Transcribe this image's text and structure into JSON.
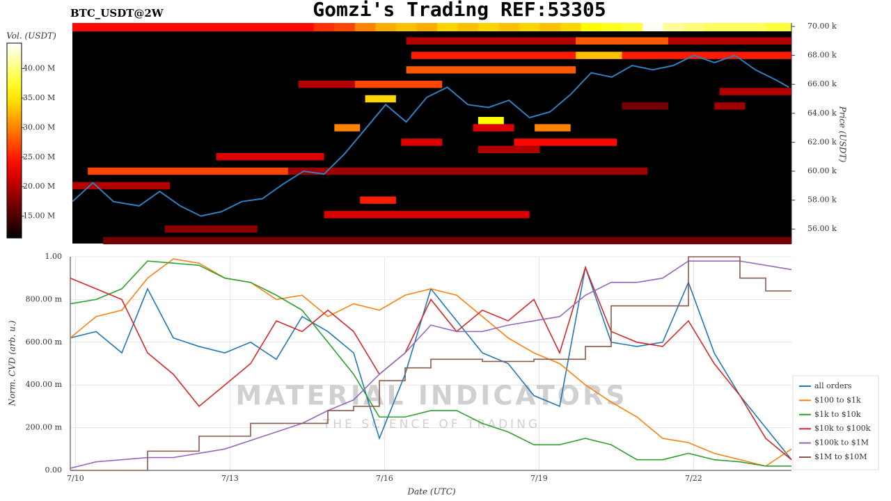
{
  "chart_data": [
    {
      "type": "heatmap",
      "title": "Gomzi's Trading REF:53305",
      "subtitle": "BTC_USDT@2W",
      "colorbar_label": "Vol. (USDT)",
      "ylabel": "Price (USDT)",
      "xlim": [
        9.9,
        23.9
      ],
      "ylim": [
        55000,
        70240
      ],
      "yticks": [
        {
          "value": 56000,
          "label": "56.00 k"
        },
        {
          "value": 58000,
          "label": "58.00 k"
        },
        {
          "value": 60000,
          "label": "60.00 k"
        },
        {
          "value": 62000,
          "label": "62.00 k"
        },
        {
          "value": 64000,
          "label": "64.00 k"
        },
        {
          "value": 66000,
          "label": "66.00 k"
        },
        {
          "value": 68000,
          "label": "68.00 k"
        },
        {
          "value": 70000,
          "label": "70.00 k"
        }
      ],
      "vlim": [
        11300000,
        44300000
      ],
      "vticks": [
        {
          "value": 15000000,
          "label": "15.00 M"
        },
        {
          "value": 20000000,
          "label": "20.00 M"
        },
        {
          "value": 25000000,
          "label": "25.00 M"
        },
        {
          "value": 30000000,
          "label": "30.00 M"
        },
        {
          "value": 35000000,
          "label": "35.00 M"
        },
        {
          "value": 40000000,
          "label": "40.00 M"
        }
      ],
      "colormap": "hot",
      "cells": [
        {
          "x": [
            10.5,
            23.9
          ],
          "price": 55200,
          "volume": 17000000
        },
        {
          "x": [
            11.7,
            13.5
          ],
          "price": 56000,
          "volume": 18000000
        },
        {
          "x": [
            14.8,
            18.8
          ],
          "price": 57000,
          "volume": 22000000
        },
        {
          "x": [
            15.5,
            16.2
          ],
          "price": 58000,
          "volume": 25000000
        },
        {
          "x": [
            9.9,
            11.8
          ],
          "price": 59000,
          "volume": 20000000
        },
        {
          "x": [
            10.2,
            14.1
          ],
          "price": 60000,
          "volume": 27000000
        },
        {
          "x": [
            14.1,
            21.1
          ],
          "price": 60000,
          "volume": 19000000
        },
        {
          "x": [
            12.7,
            14.8
          ],
          "price": 61000,
          "volume": 22000000
        },
        {
          "x": [
            17.8,
            19.0
          ],
          "price": 61500,
          "volume": 20000000
        },
        {
          "x": [
            16.3,
            17.1
          ],
          "price": 62000,
          "volume": 22000000
        },
        {
          "x": [
            18.5,
            20.5
          ],
          "price": 62000,
          "volume": 24000000
        },
        {
          "x": [
            15.0,
            15.5
          ],
          "price": 63000,
          "volume": 30000000
        },
        {
          "x": [
            17.7,
            18.5
          ],
          "price": 63000,
          "volume": 22000000
        },
        {
          "x": [
            18.9,
            19.6
          ],
          "price": 63000,
          "volume": 30000000
        },
        {
          "x": [
            17.8,
            18.3
          ],
          "price": 63500,
          "volume": 36000000
        },
        {
          "x": [
            20.6,
            21.5
          ],
          "price": 64500,
          "volume": 17000000
        },
        {
          "x": [
            22.4,
            23.0
          ],
          "price": 64500,
          "volume": 19000000
        },
        {
          "x": [
            15.6,
            16.2
          ],
          "price": 65000,
          "volume": 34000000
        },
        {
          "x": [
            22.5,
            23.9
          ],
          "price": 65500,
          "volume": 20000000
        },
        {
          "x": [
            14.3,
            15.4
          ],
          "price": 66000,
          "volume": 20000000
        },
        {
          "x": [
            15.4,
            17.1
          ],
          "price": 66000,
          "volume": 27000000
        },
        {
          "x": [
            16.4,
            19.7
          ],
          "price": 67000,
          "volume": 28000000
        },
        {
          "x": [
            16.5,
            23.9
          ],
          "price": 68000,
          "volume": 25000000
        },
        {
          "x": [
            19.7,
            20.6
          ],
          "price": 68000,
          "volume": 33000000
        },
        {
          "x": [
            16.4,
            23.9
          ],
          "price": 69000,
          "volume": 20000000
        },
        {
          "x": [
            19.7,
            21.5
          ],
          "price": 69000,
          "volume": 28000000
        }
      ],
      "x": [
        9.9,
        10.3,
        10.7,
        11.2,
        11.6,
        12.0,
        12.4,
        12.8,
        13.2,
        13.6,
        14.0,
        14.4,
        14.8,
        15.2,
        15.6,
        16.0,
        16.4,
        16.8,
        17.2,
        17.6,
        18.0,
        18.4,
        18.8,
        19.2,
        19.6,
        20.0,
        20.4,
        20.8,
        21.2,
        21.6,
        22.0,
        22.4,
        22.8,
        23.2,
        23.6,
        23.85
      ],
      "price": {
        "color": "#2f7fc1",
        "values": [
          57900,
          59200,
          57900,
          57600,
          58600,
          57600,
          56900,
          57200,
          57900,
          58100,
          59100,
          60000,
          59800,
          61200,
          62900,
          64600,
          63400,
          65100,
          65800,
          64600,
          64400,
          64900,
          63700,
          64100,
          65300,
          66800,
          66500,
          67300,
          67000,
          67300,
          68000,
          67500,
          68000,
          67000,
          66300,
          65800
        ]
      },
      "strip": [
        24000000,
        24000000,
        24000000,
        24000000,
        24000000,
        24000000,
        24000000,
        24000000,
        24000000,
        24000000,
        24000000,
        24000000,
        26000000,
        27000000,
        30000000,
        32000000,
        33000000,
        32000000,
        34000000,
        33000000,
        34000000,
        33000000,
        34000000,
        33000000,
        34000000,
        36000000,
        37000000,
        38000000,
        44000000,
        41000000,
        40000000,
        39000000,
        39000000,
        39000000,
        38000000,
        38000000
      ]
    },
    {
      "type": "line",
      "ylabel": "Norm. CVD (arb. u.)",
      "xlabel": "Date (UTC)",
      "watermark": "MATERIAL INDICATORS",
      "watermark_sub": "THE SCIENCE OF TRADING",
      "xlim": [
        9.9,
        23.9
      ],
      "xticks": [
        {
          "value": 10,
          "label": "7/10"
        },
        {
          "value": 13,
          "label": "7/13"
        },
        {
          "value": 16,
          "label": "7/16"
        },
        {
          "value": 19,
          "label": "7/19"
        },
        {
          "value": 22,
          "label": "7/22"
        }
      ],
      "ylim": [
        0,
        1
      ],
      "yticks": [
        {
          "value": 0,
          "label": "0.00"
        },
        {
          "value": 0.2,
          "label": "200.00 m"
        },
        {
          "value": 0.4,
          "label": "400.00 m"
        },
        {
          "value": 0.6,
          "label": "600.00 m"
        },
        {
          "value": 0.8,
          "label": "800.00 m"
        },
        {
          "value": 1,
          "label": "1.00"
        }
      ],
      "grid": true,
      "legend": "right",
      "x": [
        9.9,
        10.4,
        10.9,
        11.4,
        11.9,
        12.4,
        12.9,
        13.4,
        13.9,
        14.4,
        14.9,
        15.4,
        15.9,
        16.4,
        16.9,
        17.4,
        17.9,
        18.4,
        18.9,
        19.4,
        19.9,
        20.4,
        20.9,
        21.4,
        21.9,
        22.4,
        22.9,
        23.4,
        23.9
      ],
      "series": [
        {
          "name": "all orders",
          "color": "#1f77b4",
          "values": [
            0.62,
            0.65,
            0.55,
            0.85,
            0.62,
            0.58,
            0.55,
            0.6,
            0.52,
            0.72,
            0.65,
            0.55,
            0.15,
            0.45,
            0.85,
            0.7,
            0.55,
            0.5,
            0.35,
            0.3,
            0.95,
            0.6,
            0.58,
            0.6,
            0.88,
            0.55,
            0.35,
            0.2,
            0.05
          ]
        },
        {
          "name": "$100 to $1k",
          "color": "#ff7f0e",
          "values": [
            0.62,
            0.72,
            0.75,
            0.9,
            0.99,
            0.97,
            0.9,
            0.88,
            0.8,
            0.82,
            0.72,
            0.78,
            0.75,
            0.82,
            0.85,
            0.82,
            0.72,
            0.62,
            0.55,
            0.5,
            0.4,
            0.32,
            0.25,
            0.15,
            0.13,
            0.08,
            0.05,
            0.02,
            0.1
          ]
        },
        {
          "name": "$1k to $10k",
          "color": "#2ca02c",
          "values": [
            0.78,
            0.8,
            0.85,
            0.98,
            0.97,
            0.96,
            0.9,
            0.88,
            0.82,
            0.75,
            0.6,
            0.45,
            0.25,
            0.25,
            0.28,
            0.28,
            0.22,
            0.18,
            0.12,
            0.12,
            0.15,
            0.12,
            0.05,
            0.05,
            0.08,
            0.05,
            0.04,
            0.02,
            0.02
          ]
        },
        {
          "name": "$10k to $100k",
          "color": "#d62728",
          "values": [
            0.9,
            0.85,
            0.8,
            0.55,
            0.45,
            0.3,
            0.4,
            0.5,
            0.7,
            0.65,
            0.75,
            0.65,
            0.45,
            0.55,
            0.8,
            0.65,
            0.75,
            0.7,
            0.8,
            0.55,
            0.95,
            0.65,
            0.6,
            0.58,
            0.7,
            0.5,
            0.35,
            0.15,
            0.05
          ]
        },
        {
          "name": "$100k to $1M",
          "color": "#9467bd",
          "values": [
            0.01,
            0.04,
            0.05,
            0.06,
            0.06,
            0.08,
            0.1,
            0.14,
            0.18,
            0.22,
            0.28,
            0.33,
            0.45,
            0.55,
            0.68,
            0.65,
            0.65,
            0.68,
            0.7,
            0.72,
            0.82,
            0.88,
            0.88,
            0.9,
            0.98,
            0.98,
            0.98,
            0.96,
            0.94
          ]
        },
        {
          "name": "$1M to $10M",
          "color": "#8c564b",
          "step": true,
          "values": [
            0,
            0,
            0,
            0.09,
            0.09,
            0.16,
            0.16,
            0.22,
            0.22,
            0.22,
            0.28,
            0.3,
            0.42,
            0.48,
            0.52,
            0.52,
            0.51,
            0.51,
            0.52,
            0.52,
            0.58,
            0.77,
            0.77,
            0.77,
            1.0,
            1.0,
            0.9,
            0.84,
            0.84
          ]
        }
      ]
    }
  ]
}
